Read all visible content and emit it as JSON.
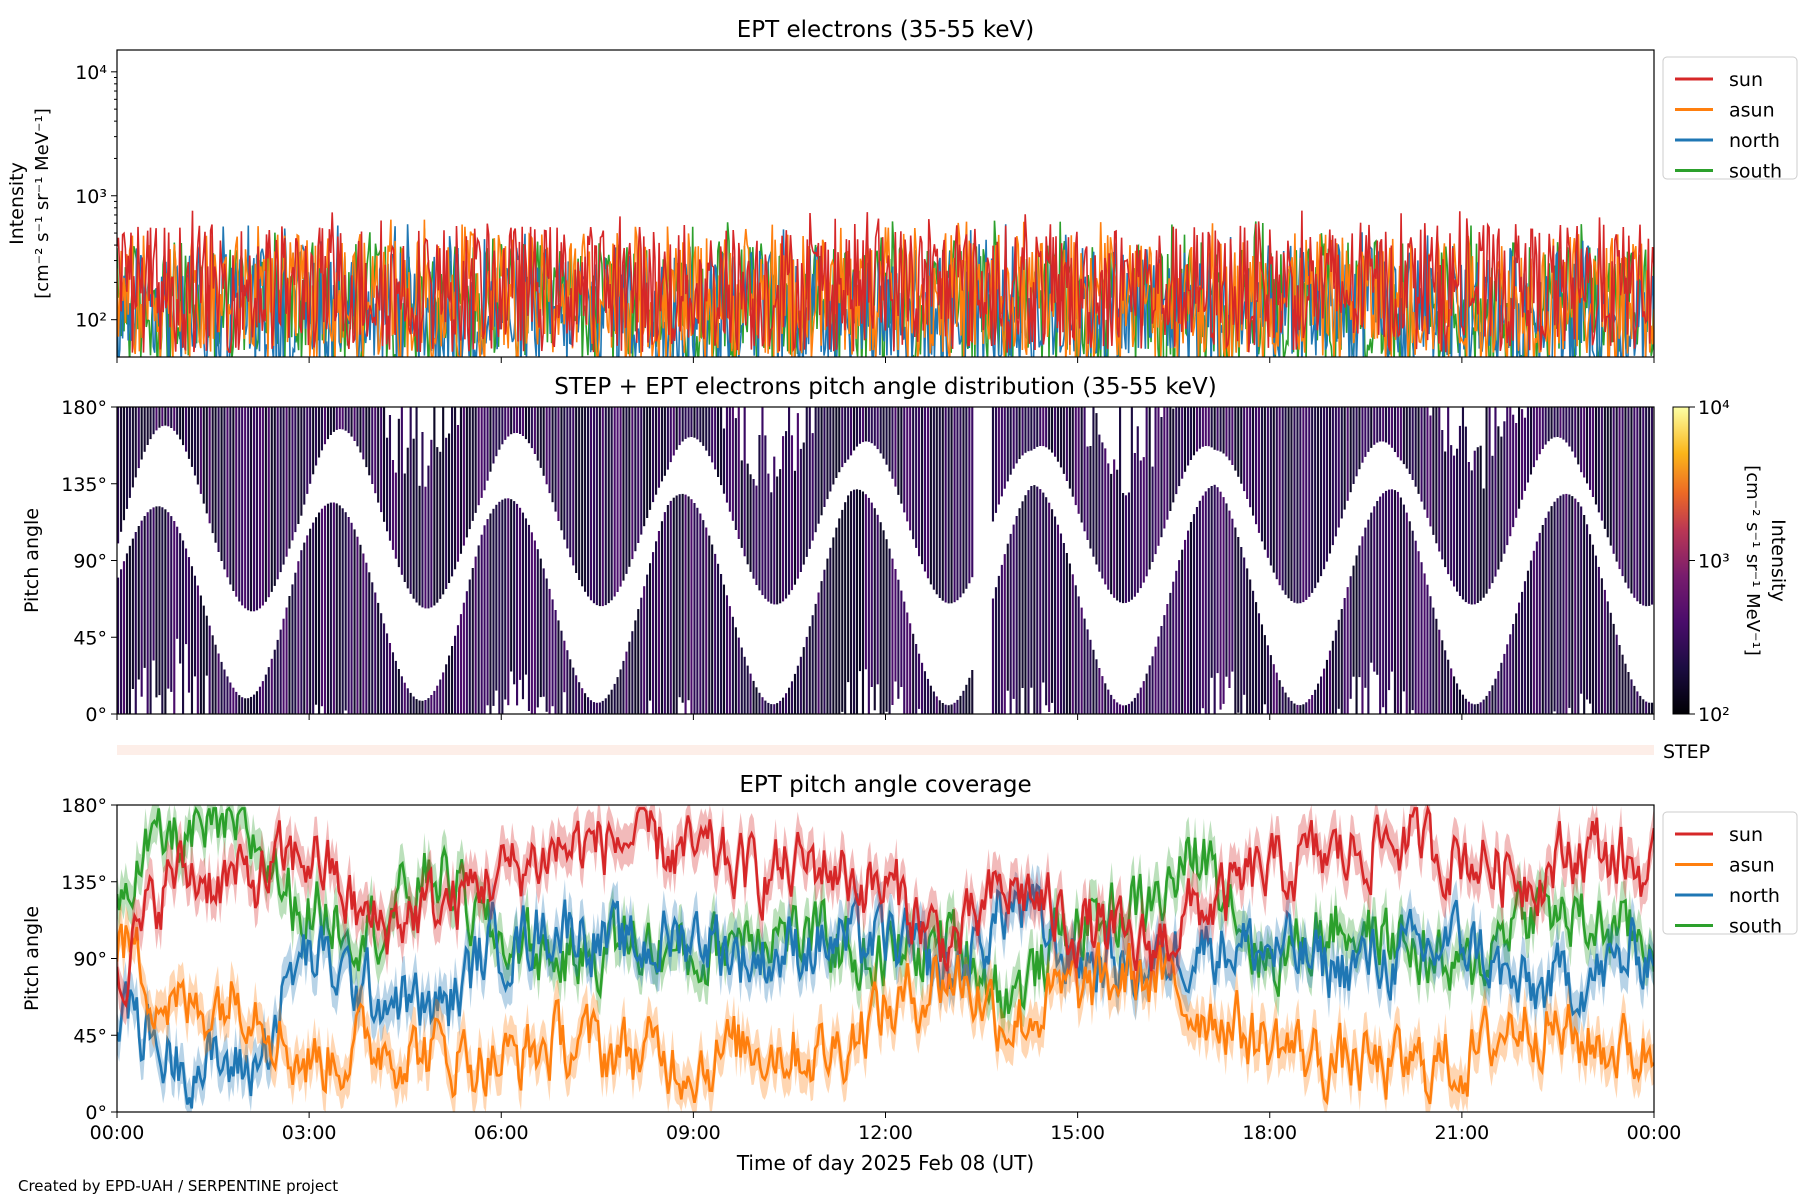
{
  "figure": {
    "credit": "Created by EPD-UAH / SERPENTINE project",
    "xlabel": "Time of day 2025 Feb 08 (UT)",
    "x_ticks": [
      "00:00",
      "03:00",
      "06:00",
      "09:00",
      "12:00",
      "15:00",
      "18:00",
      "21:00",
      "00:00"
    ]
  },
  "chart_data": [
    {
      "id": "intensity",
      "type": "line",
      "title": "EPT electrons (35-55 keV)",
      "ylabel_lines": [
        "Intensity",
        "[cm⁻² s⁻¹ sr⁻¹ MeV⁻¹]"
      ],
      "yscale": "log",
      "ylim": [
        50,
        15000
      ],
      "y_ticks": [
        {
          "value": 100,
          "label": "10²"
        },
        {
          "value": 1000,
          "label": "10³"
        },
        {
          "value": 10000,
          "label": "10⁴"
        }
      ],
      "x_range_hours": [
        0,
        24
      ],
      "legend": "outside-right-top",
      "series": [
        {
          "name": "sun",
          "color": "#d62728",
          "typical": 180,
          "peak": 760
        },
        {
          "name": "asun",
          "color": "#ff7f0e",
          "typical": 150,
          "peak": 650
        },
        {
          "name": "north",
          "color": "#1f77b4",
          "typical": 120,
          "peak": 600
        },
        {
          "name": "south",
          "color": "#2ca02c",
          "typical": 130,
          "peak": 640
        }
      ]
    },
    {
      "id": "pad",
      "type": "heatmap",
      "title": "STEP + EPT electrons pitch angle distribution (35-55 keV)",
      "ylabel": "Pitch angle",
      "ylim": [
        0,
        180
      ],
      "y_ticks": [
        "0°",
        "45°",
        "90°",
        "135°",
        "180°"
      ],
      "data_gap_hours": [
        13.35,
        13.65
      ],
      "colorbar": {
        "label_lines": [
          "Intensity",
          "[cm⁻² s⁻¹ sr⁻¹ MeV⁻¹]"
        ],
        "scale": "log",
        "range": [
          100,
          10000
        ],
        "ticks": [
          {
            "value": 100,
            "label": "10²"
          },
          {
            "value": 1000,
            "label": "10³"
          },
          {
            "value": 10000,
            "label": "10⁴"
          }
        ],
        "colormap": "inferno"
      }
    },
    {
      "id": "step",
      "type": "heatmap",
      "label": "STEP"
    },
    {
      "id": "coverage",
      "type": "line",
      "title": "EPT pitch angle coverage",
      "ylabel": "Pitch angle",
      "ylim": [
        0,
        180
      ],
      "y_ticks": [
        "0°",
        "45°",
        "90°",
        "135°",
        "180°"
      ],
      "legend": "outside-right-top",
      "series": [
        {
          "name": "sun",
          "color": "#d62728",
          "x_hours": [
            0,
            1,
            2,
            3,
            4,
            5,
            6,
            7,
            8,
            9,
            10,
            11,
            12,
            13,
            14,
            15,
            16,
            17,
            18,
            19,
            20,
            21,
            22,
            23,
            24
          ],
          "values": [
            90,
            140,
            135,
            150,
            110,
            120,
            140,
            155,
            160,
            150,
            140,
            145,
            130,
            100,
            130,
            110,
            95,
            120,
            140,
            150,
            160,
            150,
            140,
            155,
            140
          ]
        },
        {
          "name": "asun",
          "color": "#ff7f0e",
          "x_hours": [
            0,
            1,
            2,
            3,
            4,
            5,
            6,
            7,
            8,
            9,
            10,
            11,
            12,
            13,
            14,
            15,
            16,
            17,
            18,
            19,
            20,
            21,
            22,
            23,
            24
          ],
          "values": [
            100,
            60,
            70,
            30,
            40,
            35,
            30,
            40,
            35,
            30,
            40,
            35,
            60,
            80,
            55,
            70,
            80,
            60,
            40,
            30,
            25,
            30,
            55,
            40,
            35
          ]
        },
        {
          "name": "north",
          "color": "#1f77b4",
          "x_hours": [
            0,
            1,
            2,
            3,
            4,
            5,
            6,
            7,
            8,
            9,
            10,
            11,
            12,
            13,
            14,
            15,
            16,
            17,
            18,
            19,
            20,
            21,
            22,
            23,
            24
          ],
          "values": [
            60,
            30,
            25,
            90,
            70,
            60,
            100,
            110,
            95,
            105,
            90,
            100,
            100,
            80,
            120,
            90,
            85,
            100,
            95,
            85,
            90,
            100,
            70,
            80,
            95
          ]
        },
        {
          "name": "south",
          "color": "#2ca02c",
          "x_hours": [
            0,
            1,
            2,
            3,
            4,
            5,
            6,
            7,
            8,
            9,
            10,
            11,
            12,
            13,
            14,
            15,
            16,
            17,
            18,
            19,
            20,
            21,
            22,
            23,
            24
          ],
          "values": [
            140,
            160,
            160,
            120,
            110,
            140,
            100,
            90,
            100,
            90,
            110,
            100,
            90,
            100,
            70,
            110,
            120,
            150,
            90,
            110,
            100,
            80,
            120,
            110,
            100
          ]
        }
      ]
    }
  ]
}
